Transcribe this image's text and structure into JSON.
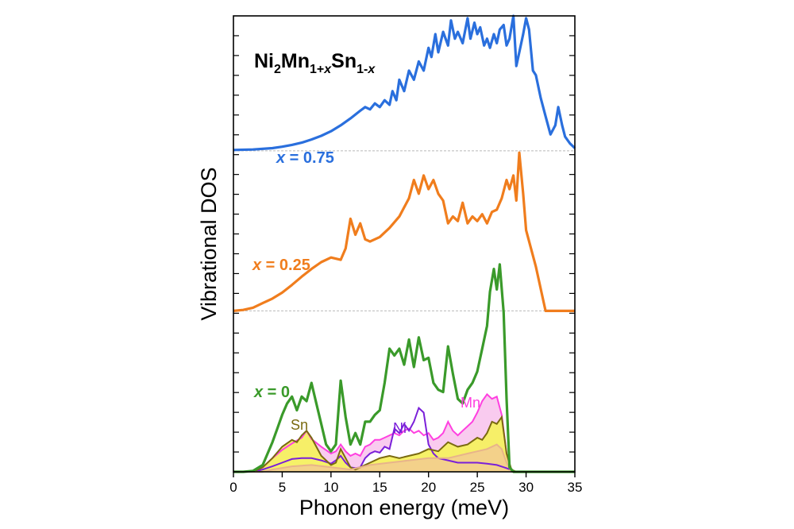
{
  "chart_data": {
    "type": "line",
    "title": {
      "base": "Ni",
      "s1": "2",
      "m1": "Mn",
      "s2": "1+",
      "s2var": "x",
      "m2": "Sn",
      "s3": "1-",
      "s3var": "x"
    },
    "xlabel": "Phonon energy (meV)",
    "ylabel": "Vibrational DOS",
    "xlim": [
      0,
      35
    ],
    "x_ticks": [
      0,
      5,
      10,
      15,
      20,
      25,
      30,
      35
    ],
    "x_tick_labels": [
      "0",
      "5",
      "10",
      "15",
      "20",
      "25",
      "30",
      "35"
    ],
    "ylim": [
      0,
      1
    ],
    "grid": false,
    "baselines": [
      0.0,
      0.353,
      0.704
    ],
    "series": [
      {
        "name": "x = 0.75",
        "label": {
          "var": "x",
          "rest": " = 0.75"
        },
        "color": "#2a6fdd",
        "x": [
          0,
          2,
          4,
          5,
          6,
          7,
          8,
          9,
          10,
          11,
          12,
          13,
          13.5,
          14,
          14.5,
          15,
          15.5,
          16,
          16.3,
          16.7,
          17,
          17.5,
          18,
          18.5,
          19,
          19.5,
          20,
          20.3,
          20.7,
          21,
          21.5,
          22,
          22.3,
          22.7,
          23,
          23.5,
          24,
          24.3,
          24.7,
          25,
          25.3,
          25.7,
          26,
          26.3,
          26.7,
          27,
          27.3,
          27.7,
          28,
          28.3,
          28.7,
          29,
          29.3,
          29.7,
          30,
          30.3,
          30.7,
          31,
          31.5,
          32,
          32.5,
          33,
          33.3,
          33.7,
          34,
          34.5,
          35
        ],
        "y": [
          0.706,
          0.707,
          0.71,
          0.713,
          0.717,
          0.722,
          0.729,
          0.737,
          0.747,
          0.76,
          0.775,
          0.792,
          0.8,
          0.795,
          0.808,
          0.8,
          0.815,
          0.805,
          0.835,
          0.815,
          0.86,
          0.835,
          0.88,
          0.86,
          0.9,
          0.88,
          0.93,
          0.91,
          0.96,
          0.92,
          0.965,
          0.935,
          0.99,
          0.95,
          0.965,
          0.94,
          0.995,
          0.95,
          0.985,
          0.96,
          0.975,
          0.935,
          0.95,
          0.93,
          0.96,
          0.94,
          0.97,
          0.98,
          0.935,
          0.95,
          1.0,
          0.89,
          0.92,
          0.96,
          0.995,
          0.97,
          0.88,
          0.87,
          0.82,
          0.78,
          0.74,
          0.76,
          0.8,
          0.76,
          0.735,
          0.72,
          0.71
        ]
      },
      {
        "name": "x = 0.25",
        "label": {
          "var": "x",
          "rest": " = 0.25"
        },
        "color": "#f07d1d",
        "x": [
          0,
          1,
          2,
          3,
          4,
          5,
          6,
          7,
          8,
          9,
          10,
          11,
          11.5,
          12,
          12.5,
          13,
          13.5,
          14,
          15,
          16,
          17,
          18,
          18.5,
          19,
          19.5,
          20,
          20.5,
          21,
          21.5,
          22,
          22.5,
          23,
          23.5,
          24,
          24.5,
          25,
          25.5,
          26,
          26.5,
          27,
          27.5,
          28,
          28.3,
          28.7,
          29,
          29.3,
          29.7,
          30,
          31,
          32,
          33,
          34,
          35
        ],
        "y": [
          0.353,
          0.355,
          0.36,
          0.37,
          0.38,
          0.393,
          0.41,
          0.428,
          0.445,
          0.46,
          0.47,
          0.465,
          0.49,
          0.555,
          0.52,
          0.545,
          0.51,
          0.505,
          0.515,
          0.535,
          0.56,
          0.6,
          0.64,
          0.61,
          0.65,
          0.62,
          0.64,
          0.61,
          0.595,
          0.545,
          0.56,
          0.55,
          0.59,
          0.545,
          0.56,
          0.55,
          0.565,
          0.545,
          0.57,
          0.575,
          0.6,
          0.64,
          0.62,
          0.65,
          0.595,
          0.7,
          0.61,
          0.53,
          0.45,
          0.353,
          0.353,
          0.353,
          0.353
        ]
      },
      {
        "name": "x = 0",
        "label": {
          "var": "x",
          "rest": " = 0"
        },
        "color": "#3a9a2a",
        "x": [
          0,
          1,
          2,
          3,
          4,
          4.5,
          5,
          5.5,
          6,
          6.5,
          7,
          7.5,
          8,
          8.5,
          9,
          9.5,
          10,
          10.5,
          11,
          11.5,
          12,
          12.5,
          13,
          13.5,
          14,
          14.5,
          15,
          15.5,
          16,
          16.5,
          17,
          17.5,
          18,
          18.5,
          19,
          19.5,
          20,
          20.5,
          21,
          21.5,
          22,
          22.5,
          23,
          23.5,
          24,
          24.5,
          25,
          25.5,
          26,
          26.3,
          26.7,
          27,
          27.3,
          27.7,
          28,
          28.3,
          28.7,
          29,
          29.5,
          30,
          31,
          32,
          33,
          34,
          35
        ],
        "y": [
          0,
          0,
          0.002,
          0.015,
          0.065,
          0.095,
          0.125,
          0.15,
          0.165,
          0.135,
          0.165,
          0.155,
          0.195,
          0.15,
          0.105,
          0.06,
          0.045,
          0.06,
          0.2,
          0.12,
          0.06,
          0.085,
          0.06,
          0.11,
          0.11,
          0.125,
          0.135,
          0.195,
          0.27,
          0.255,
          0.27,
          0.235,
          0.29,
          0.23,
          0.295,
          0.245,
          0.25,
          0.195,
          0.18,
          0.175,
          0.275,
          0.215,
          0.16,
          0.15,
          0.18,
          0.195,
          0.22,
          0.27,
          0.32,
          0.395,
          0.445,
          0.4,
          0.455,
          0.35,
          0.16,
          0.01,
          0,
          0,
          0,
          0,
          0,
          0,
          0,
          0,
          0
        ]
      }
    ],
    "partials": [
      {
        "name": "Mn",
        "color": "#ff3fe0",
        "fill": "#f9c8ee",
        "x": [
          0,
          2,
          3,
          4,
          5,
          6,
          7,
          7.5,
          8,
          9,
          10,
          10.5,
          11,
          11.5,
          12,
          12.5,
          13,
          13.5,
          14,
          14.5,
          15,
          15.5,
          16,
          16.5,
          17,
          17.5,
          18,
          18.5,
          19,
          19.5,
          20,
          20.5,
          21,
          21.5,
          22,
          22.5,
          23,
          23.5,
          24,
          24.5,
          25,
          25.5,
          26,
          26.5,
          27,
          27.5,
          28,
          28.5,
          29
        ],
        "y": [
          0,
          0,
          0.01,
          0.03,
          0.048,
          0.062,
          0.075,
          0.09,
          0.072,
          0.055,
          0.04,
          0.045,
          0.06,
          0.045,
          0.035,
          0.04,
          0.035,
          0.055,
          0.06,
          0.07,
          0.07,
          0.075,
          0.08,
          0.085,
          0.08,
          0.09,
          0.095,
          0.085,
          0.09,
          0.08,
          0.085,
          0.07,
          0.075,
          0.085,
          0.11,
          0.09,
          0.08,
          0.09,
          0.1,
          0.11,
          0.13,
          0.155,
          0.17,
          0.16,
          0.165,
          0.125,
          0.04,
          0,
          0
        ]
      },
      {
        "name": "Ni",
        "color": "#7a1fd9",
        "fill": "#ffffff",
        "x": [
          0,
          2,
          3,
          4,
          5,
          6,
          7,
          8,
          9,
          10,
          10.5,
          11,
          11.5,
          12,
          12.5,
          13,
          13.5,
          14,
          14.5,
          15,
          15.5,
          16,
          16.5,
          17,
          17.5,
          18,
          18.5,
          19,
          19.5,
          20,
          20.5,
          21,
          22,
          23,
          24,
          25,
          26,
          27,
          28,
          29
        ],
        "y": [
          0,
          0,
          0.005,
          0.012,
          0.02,
          0.028,
          0.03,
          0.03,
          0.025,
          0.018,
          0.025,
          0.035,
          0.02,
          0.01,
          0.008,
          0.01,
          0.03,
          0.04,
          0.045,
          0.042,
          0.055,
          0.05,
          0.095,
          0.085,
          0.105,
          0.09,
          0.11,
          0.14,
          0.13,
          0.06,
          0.04,
          0.03,
          0.025,
          0.02,
          0.02,
          0.02,
          0.018,
          0.015,
          0.008,
          0
        ]
      },
      {
        "name": "Sn",
        "color": "#7a6a10",
        "fill": "#f5f060",
        "x": [
          0,
          2,
          3,
          4,
          5,
          6,
          6.5,
          7,
          7.5,
          8,
          8.5,
          9,
          9.5,
          10,
          10.5,
          11,
          11.5,
          12,
          12.5,
          13,
          14,
          15,
          16,
          17,
          18,
          19,
          20,
          21,
          22,
          22.5,
          23,
          24,
          25,
          25.5,
          26,
          26.5,
          27,
          27.5,
          28,
          28.5,
          29
        ],
        "y": [
          0,
          0,
          0.01,
          0.03,
          0.055,
          0.07,
          0.065,
          0.08,
          0.09,
          0.075,
          0.055,
          0.035,
          0.025,
          0.015,
          0.02,
          0.05,
          0.03,
          0.01,
          0.005,
          0.01,
          0.02,
          0.03,
          0.035,
          0.03,
          0.035,
          0.04,
          0.05,
          0.045,
          0.065,
          0.06,
          0.055,
          0.06,
          0.075,
          0.07,
          0.085,
          0.11,
          0.105,
          0.12,
          0.04,
          0.005,
          0
        ]
      },
      {
        "name": "",
        "color": "#e8b48a",
        "fill": "#f2cf8c",
        "x": [
          0,
          3,
          4,
          6,
          8,
          10,
          12,
          13,
          14,
          16,
          18,
          20,
          22,
          24,
          25,
          26,
          27,
          27.5,
          28,
          28.5,
          29
        ],
        "y": [
          0,
          0,
          0.005,
          0.012,
          0.015,
          0.01,
          0.005,
          0.01,
          0.015,
          0.02,
          0.025,
          0.03,
          0.03,
          0.04,
          0.045,
          0.05,
          0.06,
          0.05,
          0.02,
          0,
          0
        ]
      }
    ]
  }
}
